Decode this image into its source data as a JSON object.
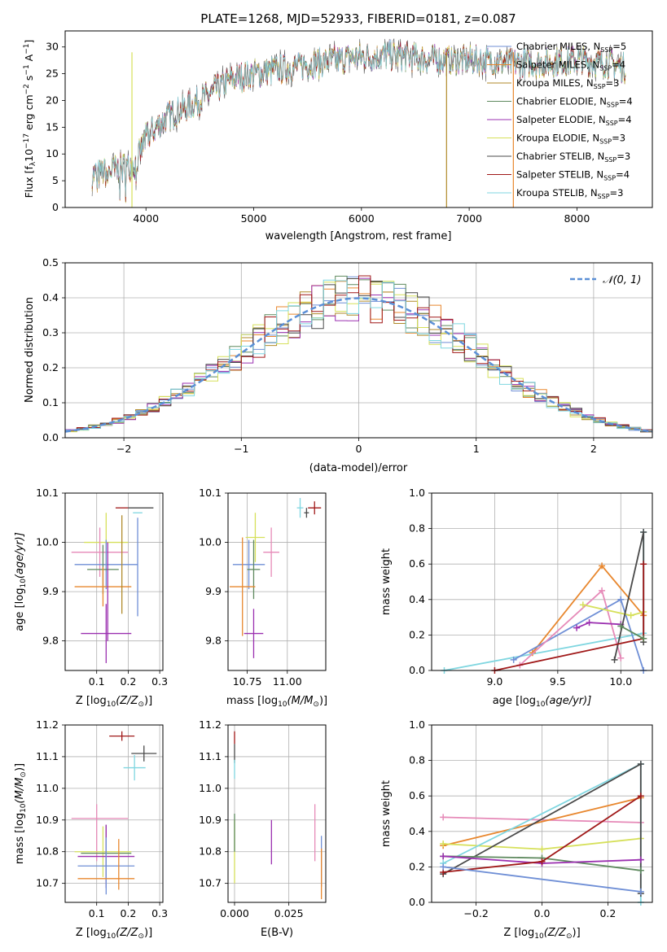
{
  "colors": {
    "Chabrier MILES": "#6f8fd6",
    "Salpeter MILES": "#e8872e",
    "Kroupa MILES": "#b08a2a",
    "Chabrier ELODIE": "#5f8a5f",
    "Salpeter ELODIE": "#9b30b0",
    "Kroupa ELODIE": "#d6e05a",
    "Chabrier STELIB": "#4a4a4a",
    "Salpeter STELIB": "#a01818",
    "Kroupa STELIB": "#7fd6e0",
    "pink": "#e68ab8",
    "normal": "#5b8fd6"
  },
  "chart_data": [
    {
      "id": "spectrum",
      "type": "line",
      "title": "PLATE=1268, MJD=52933, FIBERID=0181, z=0.087",
      "xlabel": "wavelength [Angstrom, rest frame]",
      "ylabel_main": "Flux [f",
      "ylabel_sub1": "λ",
      "ylabel_mid1": "10",
      "ylabel_sup1": "−17",
      "ylabel_mid2": " erg cm",
      "ylabel_sup2": "−2",
      "ylabel_mid3": " s",
      "ylabel_sup3": "−1",
      "ylabel_mid4": " A",
      "ylabel_sup4": "−1",
      "ylabel_end": "]",
      "xlim": [
        3250,
        8700
      ],
      "ylim": [
        0,
        33
      ],
      "xticks": [
        4000,
        5000,
        6000,
        7000,
        8000
      ],
      "yticks": [
        0,
        5,
        10,
        15,
        20,
        25,
        30
      ],
      "continuum_x": [
        3500,
        3700,
        3900,
        4000,
        4200,
        4500,
        4800,
        5000,
        5300,
        5600,
        5900,
        6200,
        6500,
        6800,
        7100,
        7400,
        7700,
        8000,
        8300,
        8450
      ],
      "continuum_y": [
        6,
        7,
        8,
        13,
        17,
        20,
        24,
        25,
        26,
        27,
        28,
        28.5,
        28,
        27.5,
        27.5,
        27,
        27,
        27.5,
        27,
        26
      ],
      "legend_series": [
        {
          "name": "Chabrier MILES",
          "n": "5"
        },
        {
          "name": "Salpeter MILES",
          "n": "4"
        },
        {
          "name": "Kroupa MILES",
          "n": "3"
        },
        {
          "name": "Chabrier ELODIE",
          "n": "4"
        },
        {
          "name": "Salpeter ELODIE",
          "n": "4"
        },
        {
          "name": "Kroupa ELODIE",
          "n": "3"
        },
        {
          "name": "Chabrier STELIB",
          "n": "3"
        },
        {
          "name": "Salpeter STELIB",
          "n": "4"
        },
        {
          "name": "Kroupa STELIB",
          "n": "3"
        }
      ],
      "legend_n_label": "N",
      "legend_n_sub": "SSP",
      "spikes": [
        {
          "x": 6790,
          "color": "#b08a2a"
        },
        {
          "x": 7410,
          "color": "#e8872e"
        },
        {
          "x": 3870,
          "color": "#d6e05a"
        }
      ]
    },
    {
      "id": "residuals",
      "type": "histogram",
      "xlabel": "(data-model)/error",
      "ylabel": "Normed distribution",
      "xlim": [
        -2.5,
        2.5
      ],
      "ylim": [
        0,
        0.5
      ],
      "xticks": [
        -2,
        -1,
        0,
        1,
        2
      ],
      "xtick_labels": [
        "−2",
        "−1",
        "0",
        "1",
        "2"
      ],
      "yticks": [
        0,
        0.1,
        0.2,
        0.3,
        0.4,
        0.5
      ],
      "ytick_labels": [
        "0.0",
        "0.1",
        "0.2",
        "0.3",
        "0.4",
        "0.5"
      ],
      "legend": "𝒩(0, 1)",
      "bin_width": 0.1
    },
    {
      "id": "age-z",
      "type": "errorbar",
      "xlabel": "Z [log",
      "xlabel_sub": "10",
      "xlabel_rest": "(Z/Z",
      "xlabel_sun": "⊙",
      "xlabel_end": ")]",
      "ylabel": "age  [log",
      "ylabel_sub": "10",
      "ylabel_rest": "(age/yr)]",
      "xlim": [
        0.0,
        0.31
      ],
      "ylim": [
        9.74,
        10.1
      ],
      "xticks": [
        0.1,
        0.2,
        0.3
      ],
      "xtick_labels": [
        "0.1",
        "0.2",
        "0.3"
      ],
      "yticks": [
        9.8,
        9.9,
        10.0,
        10.1
      ],
      "ytick_labels": [
        "9.8",
        "9.9",
        "10.0",
        "10.1"
      ],
      "points": [
        {
          "x": 0.18,
          "y": 10.07,
          "xerr": 0.02,
          "yerr": 0.0,
          "color": "#a01818"
        },
        {
          "x": 0.24,
          "y": 10.07,
          "xerr": 0.04,
          "yerr": 0.0,
          "color": "#4a4a4a"
        },
        {
          "x": 0.23,
          "y": 10.06,
          "xerr": 0.015,
          "yerr": 0.0,
          "color": "#7fd6e0"
        },
        {
          "x": 0.13,
          "y": 10.0,
          "xerr": 0.07,
          "yerr": 0.06,
          "color": "#d6e05a"
        },
        {
          "x": 0.11,
          "y": 9.98,
          "xerr": 0.09,
          "yerr": 0.05,
          "color": "#e68ab8"
        },
        {
          "x": 0.13,
          "y": 9.955,
          "xerr": 0.1,
          "yerr": 0.05,
          "color": "#6f8fd6"
        },
        {
          "x": 0.23,
          "y": 9.95,
          "xerr": 0.0,
          "yerr": 0.1,
          "color": "#6f8fd6"
        },
        {
          "x": 0.12,
          "y": 9.945,
          "xerr": 0.05,
          "yerr": 0.05,
          "color": "#5f8a5f"
        },
        {
          "x": 0.12,
          "y": 9.91,
          "xerr": 0.09,
          "yerr": 0.04,
          "color": "#e8872e"
        },
        {
          "x": 0.18,
          "y": 9.955,
          "xerr": 0.0,
          "yerr": 0.1,
          "color": "#b08a2a"
        },
        {
          "x": 0.13,
          "y": 9.815,
          "xerr": 0.08,
          "yerr": 0.06,
          "color": "#9b30b0"
        },
        {
          "x": 0.135,
          "y": 9.9,
          "xerr": 0.0,
          "yerr": 0.1,
          "color": "#9b30b0"
        }
      ]
    },
    {
      "id": "age-mass",
      "type": "errorbar",
      "xlabel": "mass [log",
      "xlabel_sub": "10",
      "xlabel_rest": "(M/M",
      "xlabel_sun": "⊙",
      "xlabel_end": ")]",
      "xlim": [
        10.63,
        11.24
      ],
      "ylim": [
        9.74,
        10.1
      ],
      "xticks": [
        10.75,
        11.0
      ],
      "xtick_labels": [
        "10.75",
        "11.00"
      ],
      "yticks": [
        9.8,
        9.9,
        10.0,
        10.1
      ],
      "ytick_labels": [
        "9.8",
        "9.9",
        "10.0",
        "10.1"
      ],
      "points": [
        {
          "x": 11.17,
          "y": 10.07,
          "xerr": 0.0,
          "yerr": 0.0,
          "color": "#a01818"
        },
        {
          "x": 11.12,
          "y": 10.06,
          "xerr": 0.015,
          "yerr": 0.01,
          "color": "#4a4a4a"
        },
        {
          "x": 11.08,
          "y": 10.07,
          "xerr": 0.02,
          "yerr": 0.02,
          "color": "#7fd6e0"
        },
        {
          "x": 10.8,
          "y": 10.01,
          "xerr": 0.06,
          "yerr": 0.05,
          "color": "#d6e05a"
        },
        {
          "x": 10.9,
          "y": 9.98,
          "xerr": 0.05,
          "yerr": 0.05,
          "color": "#e68ab8"
        },
        {
          "x": 10.76,
          "y": 9.955,
          "xerr": 0.1,
          "yerr": 0.05,
          "color": "#6f8fd6"
        },
        {
          "x": 10.79,
          "y": 9.945,
          "xerr": 0.04,
          "yerr": 0.06,
          "color": "#5f8a5f"
        },
        {
          "x": 10.72,
          "y": 9.91,
          "xerr": 0.08,
          "yerr": 0.1,
          "color": "#e8872e"
        },
        {
          "x": 10.79,
          "y": 9.815,
          "xerr": 0.06,
          "yerr": 0.05,
          "color": "#9b30b0"
        }
      ]
    },
    {
      "id": "weight-age",
      "type": "line",
      "xlabel": "age  [log",
      "xlabel_sub": "10",
      "xlabel_rest": "(age/yr)]",
      "ylabel": "mass weight",
      "xlim": [
        8.5,
        10.25
      ],
      "ylim": [
        0,
        1.0
      ],
      "xticks": [
        9.0,
        9.5,
        10.0
      ],
      "xtick_labels": [
        "9.0",
        "9.5",
        "10.0"
      ],
      "yticks": [
        0,
        0.2,
        0.4,
        0.6,
        0.8,
        1.0
      ],
      "ytick_labels": [
        "0.0",
        "0.2",
        "0.4",
        "0.6",
        "0.8",
        "1.0"
      ],
      "series": [
        {
          "color": "#7fd6e0",
          "x": [
            8.6,
            10.18,
            10.18
          ],
          "y": [
            0.0,
            0.21,
            0.78
          ]
        },
        {
          "color": "#e8872e",
          "x": [
            9.3,
            9.85,
            10.18
          ],
          "y": [
            0.1,
            0.59,
            0.31
          ]
        },
        {
          "color": "#6f8fd6",
          "x": [
            9.15,
            10.0,
            10.18
          ],
          "y": [
            0.06,
            0.4,
            0.0
          ]
        },
        {
          "color": "#e68ab8",
          "x": [
            9.2,
            9.85,
            10.0
          ],
          "y": [
            0.03,
            0.45,
            0.07
          ]
        },
        {
          "color": "#d6e05a",
          "x": [
            9.7,
            10.08,
            10.18
          ],
          "y": [
            0.37,
            0.31,
            0.33
          ]
        },
        {
          "color": "#9b30b0",
          "x": [
            9.65,
            9.75,
            10.0
          ],
          "y": [
            0.24,
            0.27,
            0.26
          ]
        },
        {
          "color": "#4a4a4a",
          "x": [
            9.95,
            10.18,
            10.18
          ],
          "y": [
            0.06,
            0.78,
            0.16
          ]
        },
        {
          "color": "#a01818",
          "x": [
            9.0,
            10.18,
            10.18
          ],
          "y": [
            0.0,
            0.18,
            0.6
          ]
        },
        {
          "color": "#5f8a5f",
          "x": [
            10.0,
            10.18
          ],
          "y": [
            0.25,
            0.18
          ]
        }
      ]
    },
    {
      "id": "mass-z",
      "type": "errorbar",
      "xlabel": "Z [log",
      "xlabel_sub": "10",
      "xlabel_rest": "(Z/Z",
      "xlabel_sun": "⊙",
      "xlabel_end": ")]",
      "ylabel": "mass [log",
      "ylabel_sub": "10",
      "ylabel_rest": "(M/M",
      "ylabel_sun": "⊙",
      "ylabel_end": ")]",
      "xlim": [
        0.0,
        0.31
      ],
      "ylim": [
        10.64,
        11.2
      ],
      "xticks": [
        0.1,
        0.2,
        0.3
      ],
      "xtick_labels": [
        "0.1",
        "0.2",
        "0.3"
      ],
      "yticks": [
        10.7,
        10.8,
        10.9,
        11.0,
        11.1,
        11.2
      ],
      "ytick_labels": [
        "10.7",
        "10.8",
        "10.9",
        "11.0",
        "11.1",
        "11.2"
      ],
      "points": [
        {
          "x": 0.18,
          "y": 11.165,
          "xerr": 0.04,
          "yerr": 0.015,
          "color": "#a01818"
        },
        {
          "x": 0.25,
          "y": 11.11,
          "xerr": 0.04,
          "yerr": 0.025,
          "color": "#4a4a4a"
        },
        {
          "x": 0.22,
          "y": 11.065,
          "xerr": 0.035,
          "yerr": 0.04,
          "color": "#7fd6e0"
        },
        {
          "x": 0.11,
          "y": 10.905,
          "xerr": 0.09,
          "yerr": 0.0,
          "color": "#e68ab8"
        },
        {
          "x": 0.1,
          "y": 10.86,
          "xerr": 0.0,
          "yerr": 0.09,
          "color": "#e68ab8"
        },
        {
          "x": 0.12,
          "y": 10.8,
          "xerr": 0.09,
          "yerr": 0.08,
          "color": "#d6e05a"
        },
        {
          "x": 0.13,
          "y": 10.795,
          "xerr": 0.08,
          "yerr": 0.09,
          "color": "#5f8a5f"
        },
        {
          "x": 0.13,
          "y": 10.785,
          "xerr": 0.09,
          "yerr": 0.1,
          "color": "#9b30b0"
        },
        {
          "x": 0.13,
          "y": 10.755,
          "xerr": 0.09,
          "yerr": 0.09,
          "color": "#6f8fd6"
        },
        {
          "x": 0.17,
          "y": 10.76,
          "xerr": 0.0,
          "yerr": 0.08,
          "color": "#e8872e"
        },
        {
          "x": 0.13,
          "y": 10.715,
          "xerr": 0.09,
          "yerr": 0.0,
          "color": "#e8872e"
        }
      ]
    },
    {
      "id": "mass-ebv",
      "type": "errorbar",
      "xlabel": "E(B-V)",
      "xlim": [
        -0.003,
        0.042
      ],
      "ylim": [
        10.64,
        11.2
      ],
      "xticks": [
        0.0,
        0.025
      ],
      "xtick_labels": [
        "0.000",
        "0.025"
      ],
      "yticks": [
        10.7,
        10.8,
        10.9,
        11.0,
        11.1,
        11.2
      ],
      "ytick_labels": [
        "10.7",
        "10.8",
        "10.9",
        "11.0",
        "11.1",
        "11.2"
      ],
      "points": [
        {
          "x": 0.0,
          "y": 11.16,
          "xerr": 0.0,
          "yerr": 0.02,
          "color": "#a01818"
        },
        {
          "x": 0.0,
          "y": 11.11,
          "xerr": 0.0,
          "yerr": 0.03,
          "color": "#4a4a4a"
        },
        {
          "x": 0.0,
          "y": 11.06,
          "xerr": 0.0,
          "yerr": 0.03,
          "color": "#7fd6e0"
        },
        {
          "x": 0.0,
          "y": 10.8,
          "xerr": 0.0,
          "yerr": 0.1,
          "color": "#d6e05a"
        },
        {
          "x": 0.0,
          "y": 10.86,
          "xerr": 0.0,
          "yerr": 0.06,
          "color": "#5f8a5f"
        },
        {
          "x": 0.017,
          "y": 10.83,
          "xerr": 0.0,
          "yerr": 0.07,
          "color": "#9b30b0"
        },
        {
          "x": 0.037,
          "y": 10.86,
          "xerr": 0.0,
          "yerr": 0.09,
          "color": "#e68ab8"
        },
        {
          "x": 0.04,
          "y": 10.77,
          "xerr": 0.0,
          "yerr": 0.08,
          "color": "#6f8fd6"
        },
        {
          "x": 0.04,
          "y": 10.73,
          "xerr": 0.0,
          "yerr": 0.08,
          "color": "#e8872e"
        }
      ]
    },
    {
      "id": "weight-z",
      "type": "line",
      "xlabel": "Z [log",
      "xlabel_sub": "10",
      "xlabel_rest": "(Z/Z",
      "xlabel_sun": "⊙",
      "xlabel_end": ")]",
      "ylabel": "mass weight",
      "xlim": [
        -0.335,
        0.335
      ],
      "ylim": [
        0,
        1.0
      ],
      "xticks": [
        -0.2,
        0.0,
        0.2
      ],
      "xtick_labels": [
        "−0.2",
        "0.0",
        "0.2"
      ],
      "yticks": [
        0,
        0.2,
        0.4,
        0.6,
        0.8,
        1.0
      ],
      "ytick_labels": [
        "0.0",
        "0.2",
        "0.4",
        "0.6",
        "0.8",
        "1.0"
      ],
      "series": [
        {
          "color": "#e68ab8",
          "x": [
            -0.3,
            0.3
          ],
          "y": [
            0.48,
            0.45
          ]
        },
        {
          "color": "#e8872e",
          "x": [
            -0.3,
            0.3
          ],
          "y": [
            0.32,
            0.59
          ]
        },
        {
          "color": "#d6e05a",
          "x": [
            -0.3,
            0.0,
            0.3
          ],
          "y": [
            0.33,
            0.3,
            0.36
          ]
        },
        {
          "color": "#7fd6e0",
          "x": [
            -0.3,
            0.3,
            0.3
          ],
          "y": [
            0.22,
            0.78,
            0.0
          ]
        },
        {
          "color": "#4a4a4a",
          "x": [
            -0.3,
            0.3,
            0.3
          ],
          "y": [
            0.16,
            0.78,
            0.05
          ]
        },
        {
          "color": "#5f8a5f",
          "x": [
            -0.3,
            0.0,
            0.3
          ],
          "y": [
            0.26,
            0.25,
            0.18
          ]
        },
        {
          "color": "#9b30b0",
          "x": [
            -0.3,
            0.0,
            0.3
          ],
          "y": [
            0.26,
            0.22,
            0.24
          ]
        },
        {
          "color": "#a01818",
          "x": [
            -0.3,
            0.0,
            0.3
          ],
          "y": [
            0.17,
            0.23,
            0.6
          ]
        },
        {
          "color": "#6f8fd6",
          "x": [
            -0.3,
            0.3
          ],
          "y": [
            0.2,
            0.06
          ]
        }
      ]
    }
  ]
}
